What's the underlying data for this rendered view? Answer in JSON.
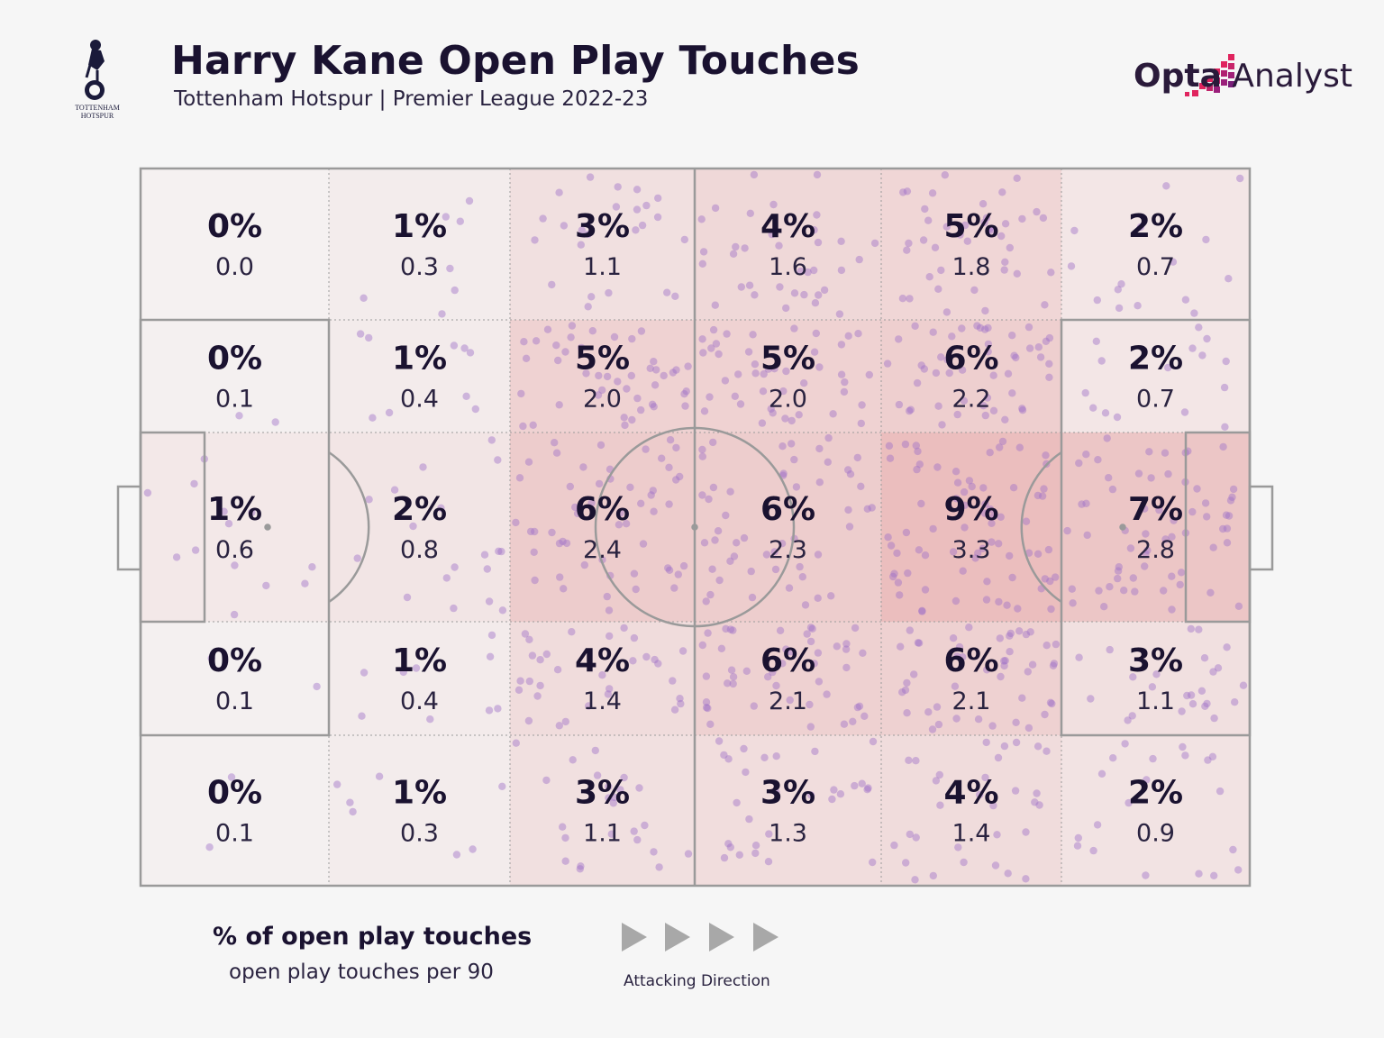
{
  "header": {
    "title": "Harry Kane Open Play Touches",
    "subtitle": "Tottenham Hotspur | Premier League 2022-23",
    "crest_text_top": "TOTTENHAM",
    "crest_text_bottom": "HOTSPUR"
  },
  "brand": {
    "name_bold": "Opta",
    "name_regular": "Analyst",
    "accent": "#e0245e",
    "accent2": "#7a1f7a"
  },
  "legend": {
    "pct_label": "% of open play touches",
    "per90_label": "open play touches per 90",
    "direction_label": "Attacking Direction",
    "arrow_icon": "triangle-right-icon"
  },
  "colors": {
    "background": "#f6f6f6",
    "zone_heat": "#e08a8a",
    "dot": "#a070c8",
    "pitch_line": "#9a9a9a"
  },
  "chart_data": {
    "type": "heatmap",
    "title": "Harry Kane Open Play Touches",
    "description_rows": "rows top to bottom, columns left to right (attacking left to right)",
    "columns": 6,
    "rows": 5,
    "cells": [
      [
        {
          "pct": "0%",
          "p90": "0.0",
          "v": 0.0
        },
        {
          "pct": "1%",
          "p90": "0.3",
          "v": 0.3
        },
        {
          "pct": "3%",
          "p90": "1.1",
          "v": 1.1
        },
        {
          "pct": "4%",
          "p90": "1.6",
          "v": 1.6
        },
        {
          "pct": "5%",
          "p90": "1.8",
          "v": 1.8
        },
        {
          "pct": "2%",
          "p90": "0.7",
          "v": 0.7
        }
      ],
      [
        {
          "pct": "0%",
          "p90": "0.1",
          "v": 0.1
        },
        {
          "pct": "1%",
          "p90": "0.4",
          "v": 0.4
        },
        {
          "pct": "5%",
          "p90": "2.0",
          "v": 2.0
        },
        {
          "pct": "5%",
          "p90": "2.0",
          "v": 2.0
        },
        {
          "pct": "6%",
          "p90": "2.2",
          "v": 2.2
        },
        {
          "pct": "2%",
          "p90": "0.7",
          "v": 0.7
        }
      ],
      [
        {
          "pct": "1%",
          "p90": "0.6",
          "v": 0.6
        },
        {
          "pct": "2%",
          "p90": "0.8",
          "v": 0.8
        },
        {
          "pct": "6%",
          "p90": "2.4",
          "v": 2.4
        },
        {
          "pct": "6%",
          "p90": "2.3",
          "v": 2.3
        },
        {
          "pct": "9%",
          "p90": "3.3",
          "v": 3.3
        },
        {
          "pct": "7%",
          "p90": "2.8",
          "v": 2.8
        }
      ],
      [
        {
          "pct": "0%",
          "p90": "0.1",
          "v": 0.1
        },
        {
          "pct": "1%",
          "p90": "0.4",
          "v": 0.4
        },
        {
          "pct": "4%",
          "p90": "1.4",
          "v": 1.4
        },
        {
          "pct": "6%",
          "p90": "2.1",
          "v": 2.1
        },
        {
          "pct": "6%",
          "p90": "2.1",
          "v": 2.1
        },
        {
          "pct": "3%",
          "p90": "1.1",
          "v": 1.1
        }
      ],
      [
        {
          "pct": "0%",
          "p90": "0.1",
          "v": 0.1
        },
        {
          "pct": "1%",
          "p90": "0.3",
          "v": 0.3
        },
        {
          "pct": "3%",
          "p90": "1.1",
          "v": 1.1
        },
        {
          "pct": "3%",
          "p90": "1.3",
          "v": 1.3
        },
        {
          "pct": "4%",
          "p90": "1.4",
          "v": 1.4
        },
        {
          "pct": "2%",
          "p90": "0.9",
          "v": 0.9
        }
      ]
    ]
  }
}
